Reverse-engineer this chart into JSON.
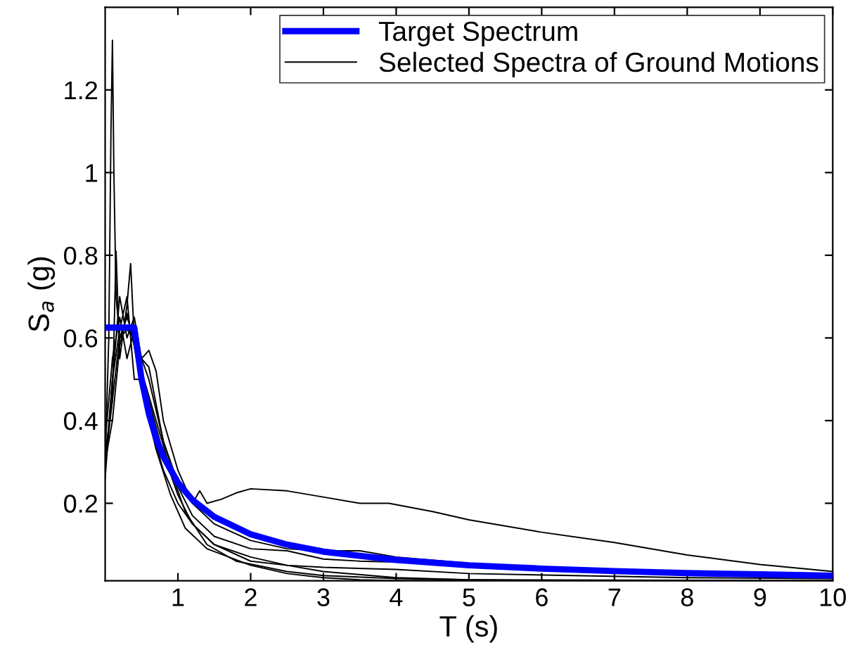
{
  "chart_data": {
    "type": "line",
    "xlabel": "T (s)",
    "ylabel": "S$_{a}$ (g)",
    "xlim": [
      0,
      10
    ],
    "ylim": [
      0.0125,
      1.4
    ],
    "xticks": [
      1,
      2,
      3,
      4,
      5,
      6,
      7,
      8,
      9,
      10
    ],
    "yticks": [
      0.2,
      0.4,
      0.6,
      0.8,
      1,
      1.2
    ],
    "grid": false,
    "legend": "top right",
    "marker": "none",
    "line_style": "solid",
    "series": [
      {
        "name": "Target Spectrum",
        "color": "#0000ff",
        "x": [
          0,
          0.4,
          0.5,
          0.6,
          0.7,
          0.8,
          1,
          1.2,
          1.5,
          2,
          2.5,
          3,
          4,
          5,
          6,
          7,
          8,
          9,
          10
        ],
        "values": [
          0.625,
          0.625,
          0.5,
          0.417,
          0.357,
          0.313,
          0.25,
          0.208,
          0.167,
          0.125,
          0.1,
          0.083,
          0.063,
          0.05,
          0.042,
          0.036,
          0.031,
          0.028,
          0.025
        ]
      },
      {
        "name": "Selected Spectra of Ground Motions",
        "color": "#000000",
        "x": [
          0,
          0.1,
          0.2,
          0.3,
          0.4,
          0.5,
          0.6,
          0.8,
          1.0,
          1.2,
          1.3,
          1.4,
          1.6,
          1.8,
          2.0,
          2.5,
          3,
          3.5,
          3.9,
          4.5,
          5,
          6,
          7,
          8,
          9,
          10
        ],
        "values": [
          0.26,
          0.5,
          0.7,
          0.6,
          0.65,
          0.55,
          0.5,
          0.35,
          0.25,
          0.2,
          0.23,
          0.2,
          0.21,
          0.225,
          0.235,
          0.23,
          0.215,
          0.2,
          0.2,
          0.18,
          0.16,
          0.13,
          0.105,
          0.075,
          0.052,
          0.035
        ]
      },
      {
        "color": "#000000",
        "x": [
          0,
          0.05,
          0.08,
          0.1,
          0.12,
          0.15,
          0.2,
          0.3,
          0.4,
          0.5,
          0.6,
          0.7,
          0.8,
          1.0,
          1.2,
          1.5,
          2,
          2.5,
          3,
          4,
          5,
          6,
          7,
          8,
          10
        ],
        "values": [
          0.3,
          0.6,
          1.1,
          1.32,
          1.0,
          0.7,
          0.6,
          0.62,
          0.6,
          0.5,
          0.42,
          0.34,
          0.28,
          0.2,
          0.15,
          0.1,
          0.07,
          0.05,
          0.035,
          0.02,
          0.015,
          0.013,
          0.013,
          0.013,
          0.013
        ]
      },
      {
        "color": "#000000",
        "x": [
          0,
          0.1,
          0.15,
          0.2,
          0.3,
          0.35,
          0.4,
          0.5,
          0.6,
          0.7,
          0.8,
          1,
          1.2,
          1.5,
          2,
          2.5,
          3,
          3.5,
          4,
          5,
          6,
          7,
          8,
          10
        ],
        "values": [
          0.3,
          0.45,
          0.81,
          0.55,
          0.68,
          0.78,
          0.6,
          0.55,
          0.57,
          0.52,
          0.4,
          0.28,
          0.2,
          0.15,
          0.11,
          0.09,
          0.085,
          0.085,
          0.07,
          0.055,
          0.045,
          0.04,
          0.035,
          0.03
        ]
      },
      {
        "color": "#000000",
        "x": [
          0,
          0.1,
          0.2,
          0.3,
          0.4,
          0.5,
          0.6,
          0.8,
          1,
          1.2,
          1.5,
          2,
          2.5,
          3,
          3.5,
          4,
          6,
          7
        ],
        "values": [
          0.35,
          0.55,
          0.65,
          0.55,
          0.62,
          0.55,
          0.53,
          0.35,
          0.24,
          0.17,
          0.12,
          0.09,
          0.085,
          0.065,
          0.06,
          0.058,
          0.04,
          0.035
        ]
      },
      {
        "color": "#000000",
        "x": [
          0,
          0.1,
          0.2,
          0.3,
          0.4,
          0.5,
          0.6,
          0.8,
          1,
          1.2,
          1.5,
          2,
          2.5,
          3,
          4,
          5,
          8,
          10
        ],
        "values": [
          0.28,
          0.5,
          0.62,
          0.7,
          0.5,
          0.5,
          0.45,
          0.32,
          0.22,
          0.15,
          0.1,
          0.06,
          0.05,
          0.045,
          0.04,
          0.03,
          0.02,
          0.018
        ]
      },
      {
        "color": "#000000",
        "x": [
          0,
          0.1,
          0.2,
          0.3,
          0.4,
          0.5,
          0.7,
          0.9,
          1.1,
          1.4,
          1.8,
          2.5,
          3,
          4,
          5,
          7,
          10
        ],
        "values": [
          0.32,
          0.45,
          0.6,
          0.65,
          0.6,
          0.52,
          0.4,
          0.28,
          0.18,
          0.1,
          0.06,
          0.035,
          0.025,
          0.018,
          0.015,
          0.014,
          0.013
        ]
      },
      {
        "color": "#000000",
        "x": [
          0,
          0.1,
          0.2,
          0.3,
          0.4,
          0.5,
          0.7,
          0.9,
          1.1,
          1.4,
          2,
          2.5,
          3,
          3.5,
          4,
          10
        ],
        "values": [
          0.3,
          0.4,
          0.58,
          0.66,
          0.58,
          0.48,
          0.33,
          0.22,
          0.14,
          0.09,
          0.05,
          0.03,
          0.02,
          0.015,
          0.013,
          0.013
        ]
      }
    ]
  }
}
